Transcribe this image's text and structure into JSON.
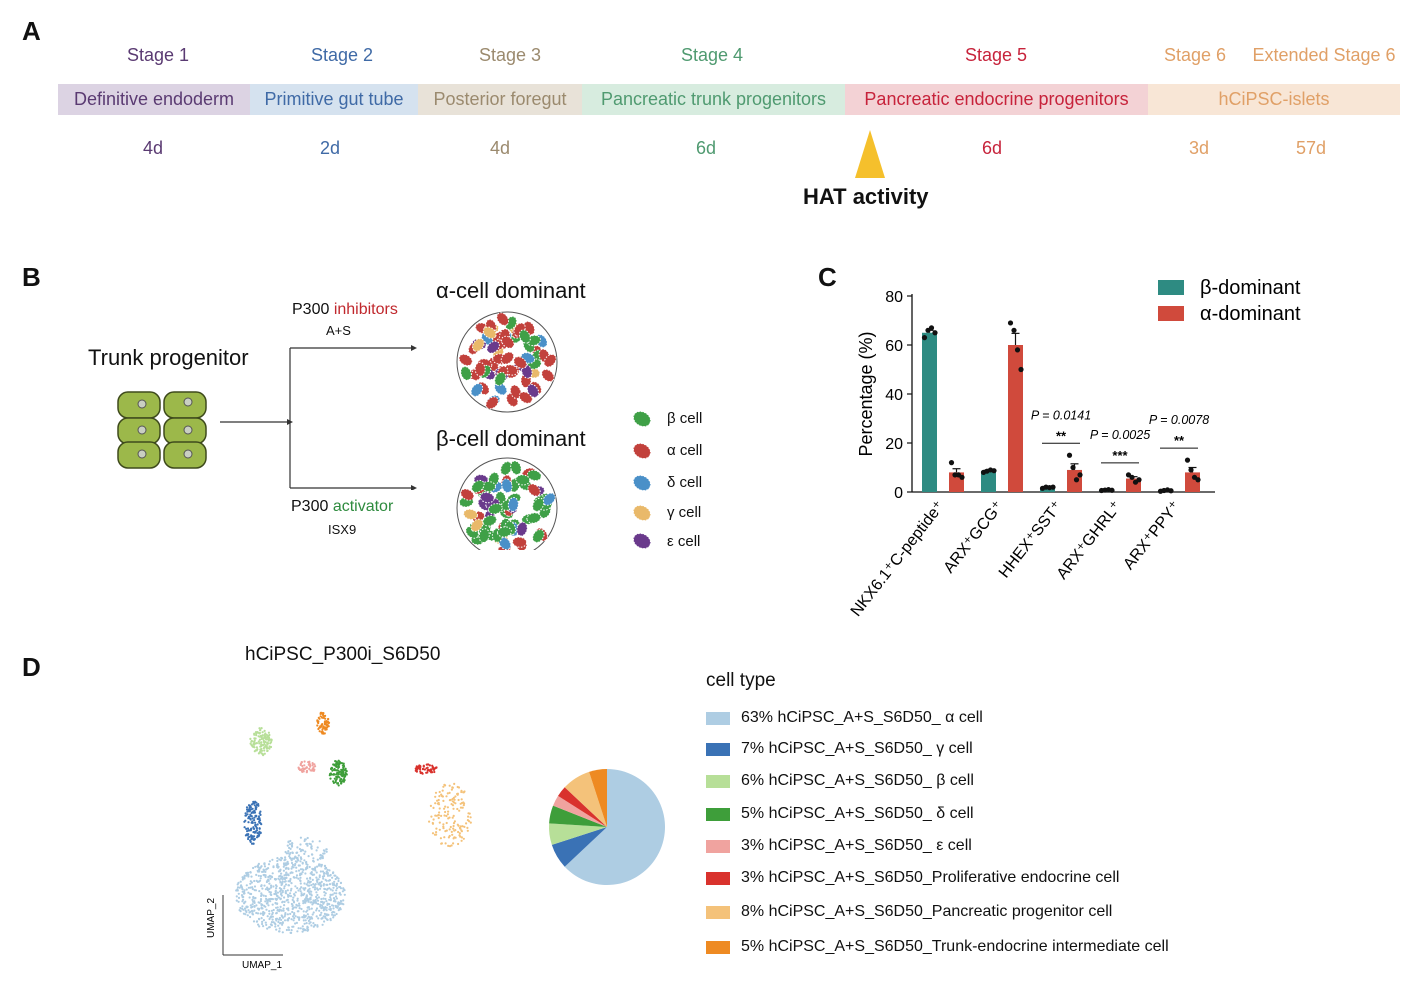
{
  "panels": {
    "a": "A",
    "b": "B",
    "c": "C",
    "d": "D"
  },
  "panel_a": {
    "stages": [
      {
        "label": "Stage 1",
        "bar": "Definitive endoderm",
        "duration": "4d",
        "text_color": "#5a3a72",
        "bar_color": "#dcd3e3"
      },
      {
        "label": "Stage 2",
        "bar": "Primitive gut tube",
        "duration": "2d",
        "text_color": "#3f6aa6",
        "bar_color": "#d5e2ef"
      },
      {
        "label": "Stage 3",
        "bar": "Posterior foregut",
        "duration": "4d",
        "text_color": "#9b8a6e",
        "bar_color": "#e8e2d8"
      },
      {
        "label": "Stage 4",
        "bar": "Pancreatic trunk progenitors",
        "duration": "6d",
        "text_color": "#4f9a70",
        "bar_color": "#d7ecdf"
      },
      {
        "label": "Stage 5",
        "bar": "Pancreatic endocrine progenitors",
        "duration": "6d",
        "text_color": "#c7233b",
        "bar_color": "#f3d2d5"
      },
      {
        "label": "Stage 6",
        "bar": "hCiPSC-islets",
        "duration": "3d",
        "text_color": "#e0a067",
        "bar_color": "#f8e6d6"
      },
      {
        "label": "Extended Stage 6",
        "bar": "",
        "duration": "57d",
        "text_color": "#e0a067",
        "bar_color": "#f8e6d6"
      }
    ],
    "hat_label": "HAT activity",
    "hat_color": "#f5c02c"
  },
  "panel_b": {
    "trunk_label": "Trunk progenitor",
    "top_branch": {
      "prefix": "P300 ",
      "highlight": "inhibitors",
      "sub": "A+S",
      "highlight_color": "#c0282d"
    },
    "bottom_branch": {
      "prefix": "P300 ",
      "highlight": "activator",
      "sub": "ISX9",
      "highlight_color": "#2e8b3e"
    },
    "alpha_title": "α-cell dominant",
    "beta_title": "β-cell dominant",
    "cell_legend": [
      {
        "label": "β cell",
        "color": "#3fa047"
      },
      {
        "label": "α cell",
        "color": "#c2413c"
      },
      {
        "label": "δ cell",
        "color": "#4a90c8"
      },
      {
        "label": "γ cell",
        "color": "#e9b96a"
      },
      {
        "label": "ε cell",
        "color": "#6a3a8c"
      }
    ]
  },
  "chart_data": [
    {
      "type": "bar",
      "categories": [
        "NKX6.1⁺C-peptide⁺",
        "ARX⁺GCG⁺",
        "HHEX⁺SST⁺",
        "ARX⁺GHRL⁺",
        "ARX⁺PPY⁺"
      ],
      "series": [
        {
          "name": "β-dominant",
          "color": "#2e8b82",
          "values": [
            65,
            8.5,
            1.8,
            0.8,
            0.6
          ],
          "points": [
            [
              63,
              66,
              67,
              65
            ],
            [
              8,
              8.5,
              9,
              8.7
            ],
            [
              1.5,
              2,
              1.8,
              2
            ],
            [
              0.6,
              0.8,
              1,
              0.7
            ],
            [
              0.3,
              0.6,
              0.9,
              0.5
            ]
          ]
        },
        {
          "name": "α-dominant",
          "color": "#d04a3c",
          "values": [
            8,
            60,
            9,
            5.5,
            8
          ],
          "points": [
            [
              12,
              7,
              7,
              6
            ],
            [
              69,
              66,
              58,
              50
            ],
            [
              15,
              10,
              5,
              7
            ],
            [
              7,
              6,
              4,
              5
            ],
            [
              13,
              9,
              6,
              5
            ]
          ]
        }
      ],
      "ylabel": "Percentage (%)",
      "yticks": [
        0,
        20,
        40,
        60,
        80
      ],
      "ylim": [
        0,
        80
      ],
      "annotations": [
        {
          "category": 2,
          "p": "P = 0.0141",
          "stars": "**"
        },
        {
          "category": 3,
          "p": "P = 0.0025",
          "stars": "***"
        },
        {
          "category": 4,
          "p": "P = 0.0078",
          "stars": "**"
        }
      ],
      "legend": "top-right"
    },
    {
      "type": "pie",
      "title": "hCiPSC_P300i_S6D50",
      "legend_title": "cell type",
      "xlabel": "UMAP_1",
      "ylabel": "UMAP_2",
      "slices": [
        {
          "label": "63% hCiPSC_A+S_S6D50_ α cell",
          "value": 63,
          "color": "#aecde3"
        },
        {
          "label": "7% hCiPSC_A+S_S6D50_ γ cell",
          "value": 7,
          "color": "#3a72b5"
        },
        {
          "label": "6% hCiPSC_A+S_S6D50_ β cell",
          "value": 6,
          "color": "#b7df98"
        },
        {
          "label": "5% hCiPSC_A+S_S6D50_ δ cell",
          "value": 5,
          "color": "#3e9e3a"
        },
        {
          "label": "3% hCiPSC_A+S_S6D50_ ε cell",
          "value": 3,
          "color": "#f0a39f"
        },
        {
          "label": "3% hCiPSC_A+S_S6D50_Proliferative endocrine cell",
          "value": 3,
          "color": "#d9322d"
        },
        {
          "label": "8% hCiPSC_A+S_S6D50_Pancreatic progenitor cell",
          "value": 8,
          "color": "#f4c27a"
        },
        {
          "label": "5% hCiPSC_A+S_S6D50_Trunk-endocrine intermediate cell",
          "value": 5,
          "color": "#ee8a22"
        }
      ]
    }
  ]
}
